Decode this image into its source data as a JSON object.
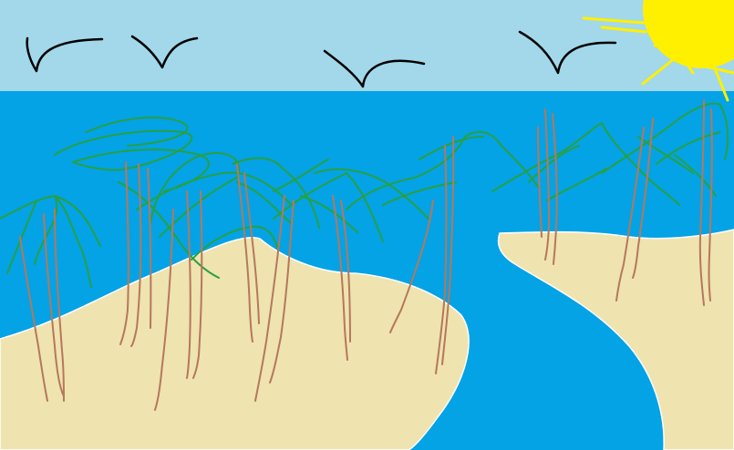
{
  "scene": {
    "colors": {
      "sky": "#a2d8ea",
      "sea": "#03a3e6",
      "sand": "#efe3b0",
      "river": "#03a3e6",
      "foam": "#bfe8ff",
      "trunk": "#b5785b",
      "fronds": "#27a043",
      "sun": "#fff000",
      "birds": "#000000"
    },
    "icons": {
      "sun": "sun-icon",
      "birds": "bird-icon",
      "palms": "palm-tree-icon"
    }
  }
}
